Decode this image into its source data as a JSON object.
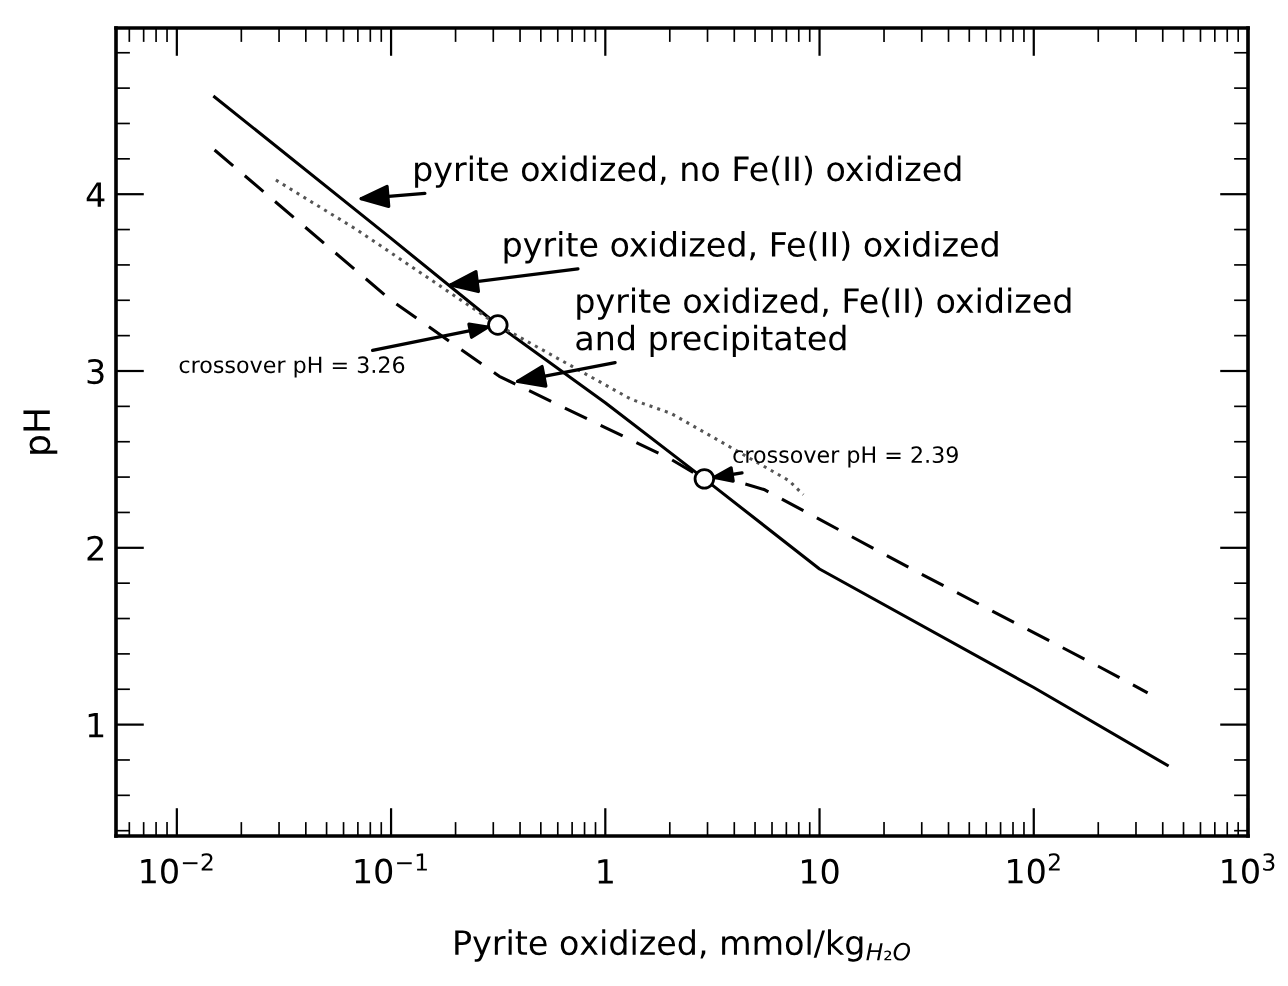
{
  "chart_data": {
    "type": "line",
    "xlabel": "Pyrite oxidized, mmol/kg$_{H₂O}$",
    "ylabel": "pH",
    "log": "x",
    "xlim": [
      0.0052,
      1000
    ],
    "ylim": [
      0.37,
      4.94
    ],
    "xticks": [
      {
        "value": 0.01,
        "label": "10$^{−2}$"
      },
      {
        "value": 0.1,
        "label": "10$^{−1}$"
      },
      1,
      10,
      {
        "value": 100,
        "label": "10$^{2}$"
      },
      {
        "value": 1000,
        "label": "10$^{3}$"
      }
    ],
    "yticks": [
      1,
      2,
      3,
      4
    ],
    "grid": false,
    "legend": false,
    "series": [
      {
        "line_style": "solid",
        "color": "#000000",
        "x": [
          0.015,
          0.1,
          0.315,
          1,
          2.9,
          10,
          100,
          420
        ],
        "values": [
          4.55,
          3.75,
          3.26,
          2.82,
          2.39,
          1.88,
          1.21,
          0.77
        ]
      },
      {
        "line_style": "dotted",
        "color": "#555555",
        "x": [
          0.029,
          0.069,
          0.315,
          1.32,
          2.03,
          7.2,
          8.4
        ],
        "values": [
          4.08,
          3.8,
          3.26,
          2.84,
          2.76,
          2.38,
          2.3
        ]
      },
      {
        "line_style": "dashed",
        "color": "#000000",
        "x": [
          0.015,
          0.1,
          0.32,
          1,
          2.03,
          2.9,
          3.5,
          5.5,
          30,
          200,
          340
        ],
        "values": [
          4.25,
          3.4,
          2.97,
          2.68,
          2.5,
          2.39,
          2.4,
          2.33,
          1.85,
          1.33,
          1.18
        ]
      },
      {
        "type": "scatter",
        "marker": "circle",
        "color": "#000000",
        "x": [
          0.315,
          2.9
        ],
        "values": [
          3.26,
          2.39
        ]
      }
    ],
    "annotations": [
      {
        "text": "pyrite oxidized, no Fe(II) oxidized",
        "x": 0.065,
        "y": 3.97
      },
      {
        "text": "pyrite oxidized, Fe(II) oxidized",
        "x": 0.17,
        "y": 3.48
      },
      {
        "text": "pyrite oxidized, Fe(II) oxidized\nand precipitated",
        "x": 0.35,
        "y": 2.93
      },
      {
        "text": "crossover pH = 3.26",
        "x": 0.315,
        "y": 3.26
      },
      {
        "text": "crossover pH = 2.39",
        "x": 2.9,
        "y": 2.39
      }
    ]
  }
}
